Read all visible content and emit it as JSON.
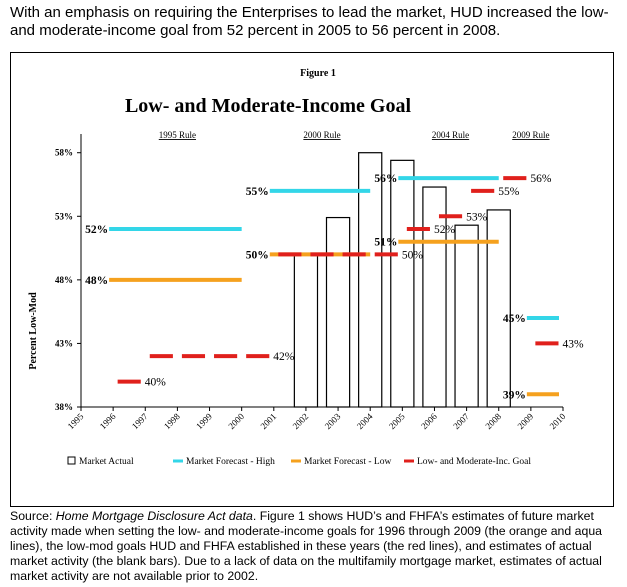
{
  "intro": "With an emphasis on requiring the Enterprises to lead the market, HUD increased the low- and moderate-income goal from 52 percent in 2005 to 56 percent in 2008.",
  "caption": {
    "prefix": "Source: ",
    "source_italic": "Home Mortgage Disclosure Act data",
    "rest": ". Figure 1 shows HUD’s and FHFA’s estimates of future market activity made when setting the low- and moderate-income goals for 1996 through 2009 (the orange and aqua lines), the low-mod goals HUD and FHFA established in these years (the red lines), and estimates of actual market activity (the blank bars). Due to a lack of data on the multifamily mortgage market, estimates of actual market activity are not available prior to 2002."
  },
  "chart_data": {
    "type": "bar",
    "figure_label": "Figure 1",
    "title": "Low- and Moderate-Income Goal",
    "ylabel": "Percent Low-Mod",
    "xlabel": "",
    "ylim": [
      38,
      59
    ],
    "y_ticks": [
      "38%",
      "43%",
      "48%",
      "53%",
      "58%"
    ],
    "y_tick_values": [
      38,
      43,
      48,
      53,
      58
    ],
    "x_ticks": [
      "1995",
      "1996",
      "1997",
      "1998",
      "1999",
      "2000",
      "2001",
      "2002",
      "2003",
      "2004",
      "2005",
      "2006",
      "2007",
      "2008",
      "2009",
      "2010"
    ],
    "grid": false,
    "legend_position": "bottom",
    "rules": [
      {
        "label": "1995 Rule",
        "from": "1996",
        "to": "2000"
      },
      {
        "label": "2000 Rule",
        "from": "2001",
        "to": "2004"
      },
      {
        "label": "2004 Rule",
        "from": "2005",
        "to": "2008"
      },
      {
        "label": "2009 Rule",
        "from": "2009",
        "to": "2009"
      }
    ],
    "colors": {
      "market_actual": "#000000",
      "forecast_high": "#33d6e8",
      "forecast_low": "#f5a11e",
      "goal": "#e0201c"
    },
    "series": [
      {
        "name": "Market Actual",
        "kind": "bar",
        "points": [
          {
            "x": "2002",
            "y": 50.0
          },
          {
            "x": "2003",
            "y": 52.9
          },
          {
            "x": "2004",
            "y": 58.0
          },
          {
            "x": "2005",
            "y": 57.4
          },
          {
            "x": "2006",
            "y": 55.3
          },
          {
            "x": "2007",
            "y": 52.3
          },
          {
            "x": "2008",
            "y": 53.5
          }
        ]
      },
      {
        "name": "Market Forecast - High",
        "kind": "line",
        "segments": [
          {
            "from": "1996",
            "to": "2000",
            "y": 52,
            "label": "52%"
          },
          {
            "from": "2001",
            "to": "2004",
            "y": 55,
            "label": "55%"
          },
          {
            "from": "2005",
            "to": "2008",
            "y": 56,
            "label": "56%"
          },
          {
            "from": "2009",
            "to": "2009",
            "y": 45,
            "label": "45%"
          }
        ]
      },
      {
        "name": "Market Forecast - Low",
        "kind": "line",
        "segments": [
          {
            "from": "1996",
            "to": "2000",
            "y": 48,
            "label": "48%"
          },
          {
            "from": "2001",
            "to": "2004",
            "y": 50,
            "label": "50%"
          },
          {
            "from": "2005",
            "to": "2008",
            "y": 51,
            "label": "51%"
          },
          {
            "from": "2009",
            "to": "2009",
            "y": 39,
            "label": "39%"
          }
        ]
      },
      {
        "name": "Low- and Moderate-Inc. Goal",
        "kind": "dashes",
        "points": [
          {
            "x": "1996",
            "y": 40,
            "label": "40%"
          },
          {
            "x": "1997",
            "y": 42
          },
          {
            "x": "1998",
            "y": 42
          },
          {
            "x": "1999",
            "y": 42
          },
          {
            "x": "2000",
            "y": 42,
            "label": "42%"
          },
          {
            "x": "2001",
            "y": 50
          },
          {
            "x": "2002",
            "y": 50
          },
          {
            "x": "2003",
            "y": 50
          },
          {
            "x": "2004",
            "y": 50,
            "label": "50%"
          },
          {
            "x": "2005",
            "y": 52,
            "label": "52%"
          },
          {
            "x": "2006",
            "y": 53,
            "label": "53%"
          },
          {
            "x": "2007",
            "y": 55,
            "label": "55%"
          },
          {
            "x": "2008",
            "y": 56,
            "label": "56%"
          },
          {
            "x": "2009",
            "y": 43,
            "label": "43%"
          }
        ]
      }
    ]
  }
}
